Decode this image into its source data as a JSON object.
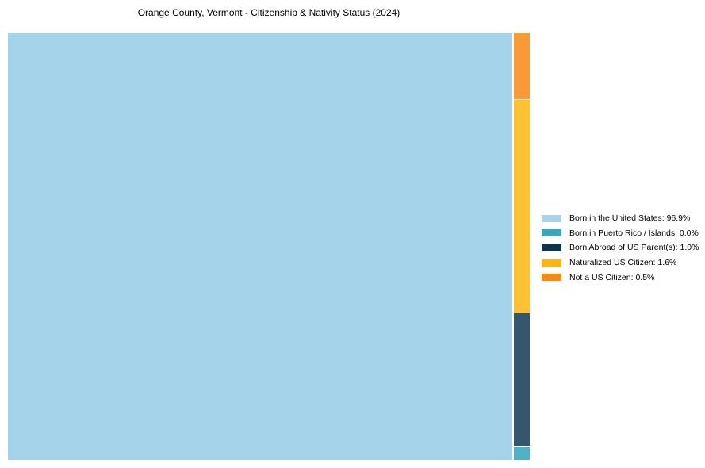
{
  "chart_data": {
    "type": "treemap",
    "title": "Orange County, Vermont - Citizenship & Nativity Status (2024)",
    "unit": "%",
    "categories": [
      "Born in the United States",
      "Born in Puerto Rico / Islands",
      "Born Abroad of US Parent(s)",
      "Naturalized US Citizen",
      "Not a US Citizen"
    ],
    "values": [
      96.9,
      0.0,
      1.0,
      1.6,
      0.5
    ],
    "series_colors": [
      "#A5D3EA",
      "#4CB2C8",
      "#35566C",
      "#FDC132",
      "#F89A38"
    ],
    "legend": {
      "position": "right",
      "entries": [
        {
          "label": "Born in the United States: 96.9%",
          "color": "#A8D3EA"
        },
        {
          "label": "Born in Puerto Rico / Islands: 0.0%",
          "color": "#35A7BF"
        },
        {
          "label": "Born Abroad of US Parent(s): 1.0%",
          "color": "#10344E"
        },
        {
          "label": "Naturalized US Citizen: 1.6%",
          "color": "#FEB512"
        },
        {
          "label": "Not a US Citizen: 0.5%",
          "color": "#F8880F"
        }
      ]
    }
  }
}
